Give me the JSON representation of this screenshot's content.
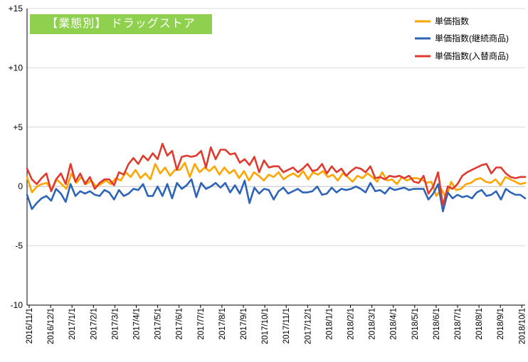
{
  "chart_data": {
    "type": "line",
    "title": "【業態別】 ドラッグストア",
    "yticks": [
      "+15",
      "+10",
      "+5",
      "0",
      "-5",
      "-10"
    ],
    "ytick_values": [
      15,
      10,
      5,
      0,
      -5,
      -10
    ],
    "ylim": [
      -10,
      15
    ],
    "grid": "horizontal",
    "legend": "top-right",
    "xticks": [
      "2016/11/1",
      "2016/12/1",
      "2017/1/1",
      "2017/2/1",
      "2017/3/1",
      "2017/4/1",
      "2017/5/1",
      "2017/6/1",
      "2017/7/1",
      "2017/8/1",
      "2017/9/1",
      "2017/10/1",
      "2017/11/1",
      "2017/12/1",
      "2018/1/1",
      "2018/2/1",
      "2018/3/1",
      "2018/4/1",
      "2018/5/1",
      "2018/6/1",
      "2018/7/1",
      "2018/8/1",
      "2018/9/1",
      "2018/10/1"
    ],
    "series": [
      {
        "name": "単価指数",
        "color": "#ffa500",
        "values": [
          0.8,
          -0.5,
          0,
          0.2,
          0.3,
          -0.3,
          0.6,
          0.2,
          -0.2,
          1.1,
          0.3,
          0.8,
          0.2,
          0.5,
          0,
          0.2,
          0.5,
          0.2,
          0.7,
          0.5,
          1.2,
          0.8,
          1.4,
          0.7,
          1.1,
          0.6,
          1.9,
          1.1,
          1.6,
          0.9,
          1.4,
          1.4,
          2.0,
          0.8,
          1.9,
          1.2,
          1.6,
          1.3,
          1.7,
          1.0,
          1.6,
          1.1,
          1.4,
          0.7,
          1.3,
          0.5,
          1.2,
          0.9,
          0.5,
          1.0,
          0.8,
          1.2,
          0.6,
          0.9,
          1.1,
          0.8,
          1.3,
          0.6,
          1.2,
          1.0,
          1.3,
          0.8,
          1.0,
          0.5,
          1.1,
          0.8,
          0.4,
          0.9,
          0.7,
          1.1,
          0.8,
          0.4,
          1.2,
          0.5,
          0.6,
          0.2,
          0.8,
          0.5,
          0.7,
          0.7,
          0.6,
          0.3,
          0.4,
          -0.8,
          -0.2,
          -1.0,
          0.4,
          -0.3,
          -0.2,
          0.2,
          0.3,
          0.6,
          0.7,
          0.4,
          0.3,
          0.6,
          0.1,
          0.8,
          0.6,
          0.4,
          0.2,
          0.3
        ],
        "values_note": "",
        "end": 0.3
      },
      {
        "name": "単価指数(継続商品)",
        "color": "#2e64b8",
        "values": [
          -0.7,
          -1.9,
          -1.4,
          -1.0,
          -0.8,
          -1.2,
          -0.2,
          -0.6,
          -1.3,
          0.2,
          -0.8,
          -0.4,
          -0.6,
          -0.4,
          -0.7,
          -0.8,
          -0.3,
          -0.5,
          -1.1,
          -0.3,
          -0.8,
          -0.6,
          -0.2,
          -0.3,
          0.2,
          -0.8,
          -0.8,
          0.0,
          -0.8,
          0.2,
          -1.0,
          0.3,
          -0.2,
          0.1,
          0.6,
          -0.9,
          0.3,
          -0.2,
          0.0,
          0.3,
          -0.1,
          0.3,
          -0.5,
          0.1,
          -0.6,
          0.5,
          -1.4,
          -0.1,
          -0.6,
          -0.2,
          -0.3,
          -1.1,
          -0.4,
          -0.1,
          -0.6,
          -0.4,
          -0.2,
          -0.5,
          -0.5,
          -0.4,
          0.0,
          -0.7,
          -0.6,
          -0.1,
          -0.5,
          -0.2,
          -0.3,
          -0.2,
          0.0,
          -0.2,
          -0.5,
          0.3,
          -0.4,
          -0.3,
          -0.6,
          -0.1,
          -0.3,
          -0.2,
          -0.1,
          -0.3,
          -0.2,
          -0.2,
          -0.2,
          -1.1,
          -0.6,
          0.2,
          -2.1,
          -0.5,
          -1.0,
          -0.7,
          -0.9,
          -0.8,
          -1.0,
          -0.5,
          -0.3,
          -0.8,
          -0.7,
          -0.4,
          -1.1,
          -0.2,
          -0.5,
          -0.7,
          -0.7,
          -1.0
        ],
        "end": -1.0
      },
      {
        "name": "単価指数(入替商品)",
        "color": "#e03a2e",
        "values": [
          1.5,
          0.6,
          0.2,
          0.7,
          1.1,
          -0.4,
          0.6,
          1.1,
          0.2,
          1.9,
          0.4,
          1.1,
          0.2,
          0.8,
          -0.2,
          0.3,
          0.6,
          0.6,
          0.1,
          1.2,
          1.0,
          1.9,
          2.4,
          1.9,
          2.6,
          2.2,
          2.8,
          2.3,
          3.6,
          2.6,
          3.0,
          1.4,
          2.5,
          2.6,
          2.5,
          2.6,
          3.0,
          1.6,
          3.3,
          2.3,
          3.1,
          3.1,
          2.7,
          2.8,
          2.0,
          2.3,
          1.8,
          2.5,
          1.2,
          2.2,
          1.6,
          1.7,
          1.7,
          1.2,
          1.4,
          1.6,
          1.2,
          1.5,
          1.9,
          1.3,
          1.4,
          1.9,
          1.1,
          1.7,
          1.2,
          1.5,
          0.9,
          1.3,
          1.6,
          1.5,
          1.2,
          1.7,
          0.7,
          0.8,
          0.6,
          0.9,
          0.8,
          0.9,
          0.7,
          0.9,
          0.4,
          0.3,
          0.9,
          -0.6,
          0.0,
          1.2,
          -1.6,
          0.0,
          -0.2,
          0.2,
          0.9,
          1.2,
          1.4,
          1.6,
          1.8,
          1.9,
          1.1,
          1.6,
          1.6,
          1.1,
          0.8,
          0.7,
          0.8,
          0.8
        ],
        "end": 0.8
      }
    ]
  }
}
